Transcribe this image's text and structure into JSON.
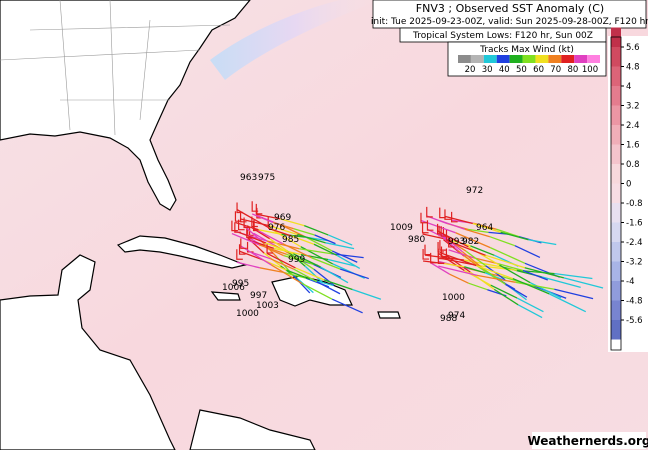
{
  "header": {
    "title": "FNV3 ; Observed SST Anomaly (C)",
    "subtitle": "init: Tue 2025-09-23-00Z, valid: Sun 2025-09-28-00Z, F120 hr"
  },
  "legend": {
    "title": "Tropical System Lows: F120 hr, Sun 00Z",
    "wind_title": "Tracks Max Wind (kt)",
    "wind_ticks": [
      20,
      30,
      40,
      50,
      60,
      70,
      80,
      100
    ],
    "wind_colors": [
      "#8c8c8c",
      "#b4b4b4",
      "#20c8d8",
      "#2040e0",
      "#20b020",
      "#80e020",
      "#f0e020",
      "#f08020",
      "#e02020",
      "#e040c0",
      "#ff80e0"
    ]
  },
  "colorbar": {
    "ticks": [
      5.6,
      4.8,
      4,
      3.2,
      2.4,
      1.6,
      0.8,
      0,
      -0.8,
      -1.6,
      -2.4,
      -3.2,
      -4,
      -4.8,
      -5.6
    ]
  },
  "lows": [
    975,
    963,
    969,
    976,
    985,
    999,
    995,
    1006,
    997,
    1003,
    1000,
    972,
    964,
    1009,
    980,
    993,
    982,
    974,
    1000,
    988
  ],
  "watermark": "Weathernerds.org"
}
